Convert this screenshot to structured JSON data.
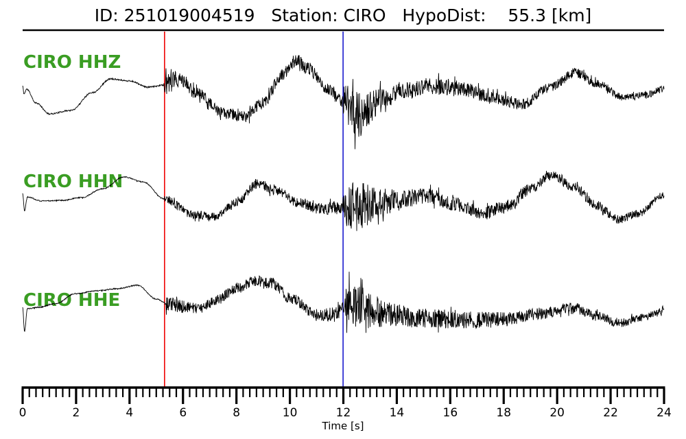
{
  "header": {
    "title": "ID: 251019004519   Station: CIRO   HypoDist:    55.3 [km]"
  },
  "colors": {
    "trace": "#000000",
    "channel_label_green": "#3a9d23",
    "p_pick_red": "#ee0000",
    "s_pick_blue": "#1a1acd",
    "axis": "#000000",
    "background": "#ffffff"
  },
  "chart_data": {
    "type": "line",
    "title": "ID: 251019004519   Station: CIRO   HypoDist:    55.3 [km]",
    "xlabel": "Time [s]",
    "x_range": [
      0,
      24
    ],
    "x_major_ticks": [
      0,
      2,
      4,
      6,
      8,
      10,
      12,
      14,
      16,
      18,
      20,
      22,
      24
    ],
    "x_tick_labels": [
      "0",
      "2",
      "4",
      "6",
      "8",
      "10",
      "12",
      "14",
      "16",
      "18",
      "20",
      "22",
      "24"
    ],
    "x_minor_tick_step": 0.25,
    "grid": false,
    "legend": "none",
    "pick_lines": [
      {
        "time": 5.31,
        "color": "#ee0000"
      },
      {
        "time": 11.99,
        "color": "#1a1acd"
      }
    ],
    "series": [
      {
        "name": "CIRO HHZ",
        "seed": 11,
        "lf": [
          [
            0,
            0.2
          ],
          [
            0.05,
            -0.04
          ],
          [
            0.15,
            0.1
          ],
          [
            0.5,
            -0.3
          ],
          [
            1.0,
            -0.62
          ],
          [
            1.8,
            -0.52
          ],
          [
            2.6,
            0.0
          ],
          [
            3.3,
            0.4
          ],
          [
            4.0,
            0.34
          ],
          [
            4.7,
            0.16
          ],
          [
            5.3,
            0.22
          ],
          [
            5.9,
            0.36
          ],
          [
            6.5,
            0.0
          ],
          [
            7.5,
            -0.6
          ],
          [
            8.3,
            -0.7
          ],
          [
            9.0,
            -0.3
          ],
          [
            9.7,
            0.5
          ],
          [
            10.2,
            0.94
          ],
          [
            10.7,
            0.7
          ],
          [
            11.4,
            0.1
          ],
          [
            12.0,
            -0.26
          ],
          [
            12.6,
            -0.66
          ],
          [
            13.3,
            -0.3
          ],
          [
            14.2,
            0.06
          ],
          [
            15.5,
            0.18
          ],
          [
            16.5,
            0.1
          ],
          [
            17.5,
            -0.14
          ],
          [
            18.7,
            -0.34
          ],
          [
            19.7,
            0.14
          ],
          [
            20.7,
            0.58
          ],
          [
            21.5,
            0.26
          ],
          [
            22.5,
            -0.14
          ],
          [
            23.3,
            -0.06
          ],
          [
            24,
            0.1
          ]
        ],
        "hf_env": [
          [
            0,
            1
          ],
          [
            5.28,
            1
          ],
          [
            5.33,
            16
          ],
          [
            6.0,
            11
          ],
          [
            6.8,
            8
          ],
          [
            8.0,
            8
          ],
          [
            9.5,
            9
          ],
          [
            10.3,
            10
          ],
          [
            11.3,
            8
          ],
          [
            11.97,
            8
          ],
          [
            12.02,
            30
          ],
          [
            12.5,
            34
          ],
          [
            13.2,
            22
          ],
          [
            14.0,
            14
          ],
          [
            15.0,
            12
          ],
          [
            16.0,
            13
          ],
          [
            17.0,
            10
          ],
          [
            18.5,
            8
          ],
          [
            19.5,
            7
          ],
          [
            20.5,
            8
          ],
          [
            21.5,
            6
          ],
          [
            22.5,
            5
          ],
          [
            24,
            5
          ]
        ]
      },
      {
        "name": "CIRO HHN",
        "seed": 22,
        "lf": [
          [
            0,
            0.26
          ],
          [
            0.07,
            -0.24
          ],
          [
            0.18,
            0.16
          ],
          [
            0.7,
            0.04
          ],
          [
            1.5,
            0.06
          ],
          [
            2.2,
            0.14
          ],
          [
            3.0,
            0.4
          ],
          [
            3.8,
            0.74
          ],
          [
            4.5,
            0.6
          ],
          [
            5.3,
            0.1
          ],
          [
            6.4,
            -0.36
          ],
          [
            7.2,
            -0.42
          ],
          [
            8.0,
            0.0
          ],
          [
            8.8,
            0.54
          ],
          [
            9.5,
            0.34
          ],
          [
            10.3,
            0.0
          ],
          [
            11.2,
            -0.2
          ],
          [
            12.0,
            -0.14
          ],
          [
            12.7,
            -0.1
          ],
          [
            13.5,
            0.0
          ],
          [
            14.5,
            0.14
          ],
          [
            15.2,
            0.18
          ],
          [
            16.2,
            -0.06
          ],
          [
            17.2,
            -0.32
          ],
          [
            18.2,
            -0.1
          ],
          [
            19.0,
            0.4
          ],
          [
            19.8,
            0.78
          ],
          [
            20.6,
            0.46
          ],
          [
            21.5,
            -0.1
          ],
          [
            22.3,
            -0.5
          ],
          [
            23.0,
            -0.34
          ],
          [
            24,
            0.22
          ]
        ],
        "hf_env": [
          [
            0,
            0.8
          ],
          [
            5.28,
            0.8
          ],
          [
            5.33,
            7
          ],
          [
            6.5,
            6
          ],
          [
            8.0,
            6
          ],
          [
            9.0,
            7
          ],
          [
            10.0,
            7
          ],
          [
            11.0,
            8
          ],
          [
            11.7,
            10
          ],
          [
            11.97,
            10
          ],
          [
            12.02,
            32
          ],
          [
            12.6,
            36
          ],
          [
            13.4,
            22
          ],
          [
            14.2,
            14
          ],
          [
            15.2,
            11
          ],
          [
            16.5,
            10
          ],
          [
            17.5,
            10
          ],
          [
            18.5,
            9
          ],
          [
            19.5,
            7
          ],
          [
            20.5,
            7
          ],
          [
            21.5,
            7
          ],
          [
            22.5,
            6
          ],
          [
            24,
            5
          ]
        ]
      },
      {
        "name": "CIRO HHE",
        "seed": 33,
        "lf": [
          [
            0,
            0.14
          ],
          [
            0.07,
            -0.56
          ],
          [
            0.18,
            0.1
          ],
          [
            0.6,
            0.14
          ],
          [
            1.2,
            0.24
          ],
          [
            2.0,
            0.54
          ],
          [
            2.8,
            0.62
          ],
          [
            3.5,
            0.68
          ],
          [
            4.3,
            0.78
          ],
          [
            5.0,
            0.38
          ],
          [
            5.4,
            0.26
          ],
          [
            6.0,
            0.16
          ],
          [
            6.6,
            0.1
          ],
          [
            7.3,
            0.36
          ],
          [
            8.0,
            0.7
          ],
          [
            8.7,
            0.92
          ],
          [
            9.3,
            0.84
          ],
          [
            10.1,
            0.36
          ],
          [
            11.0,
            -0.1
          ],
          [
            11.6,
            -0.06
          ],
          [
            12.1,
            0.1
          ],
          [
            12.8,
            0.1
          ],
          [
            13.6,
            -0.06
          ],
          [
            15.0,
            -0.18
          ],
          [
            16.5,
            -0.22
          ],
          [
            18.0,
            -0.22
          ],
          [
            19.3,
            -0.06
          ],
          [
            20.5,
            0.14
          ],
          [
            21.5,
            -0.1
          ],
          [
            22.3,
            -0.32
          ],
          [
            23.2,
            -0.16
          ],
          [
            24,
            0.06
          ]
        ],
        "hf_env": [
          [
            0,
            0.8
          ],
          [
            5.3,
            0.8
          ],
          [
            5.38,
            11
          ],
          [
            6.2,
            8
          ],
          [
            7.0,
            7
          ],
          [
            8.0,
            8
          ],
          [
            9.0,
            8
          ],
          [
            10.0,
            8
          ],
          [
            11.0,
            9
          ],
          [
            11.6,
            10
          ],
          [
            12.05,
            10
          ],
          [
            12.1,
            40
          ],
          [
            12.8,
            30
          ],
          [
            13.6,
            18
          ],
          [
            14.5,
            15
          ],
          [
            15.5,
            14
          ],
          [
            16.5,
            13
          ],
          [
            17.5,
            12
          ],
          [
            18.5,
            10
          ],
          [
            19.5,
            8
          ],
          [
            20.5,
            8
          ],
          [
            21.5,
            7
          ],
          [
            22.5,
            6
          ],
          [
            24,
            5
          ]
        ]
      }
    ]
  }
}
